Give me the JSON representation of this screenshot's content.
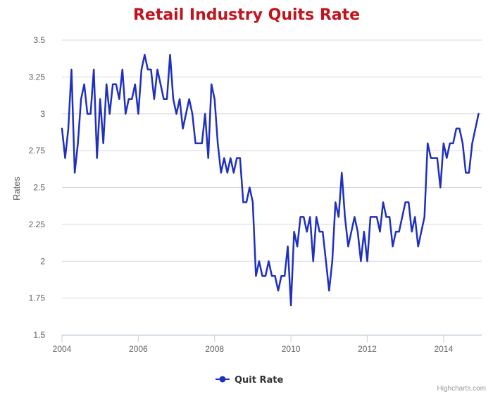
{
  "chart_data": {
    "type": "line",
    "title": "Retail Industry Quits Rate",
    "ylabel": "Rates",
    "xlabel": "",
    "xlim": [
      2004,
      2015
    ],
    "ylim": [
      1.5,
      3.5
    ],
    "x_ticks": [
      "2004",
      "2006",
      "2008",
      "2010",
      "2012",
      "2014"
    ],
    "y_ticks": [
      "1.5",
      "1.75",
      "2",
      "2.25",
      "2.5",
      "2.75",
      "3",
      "3.25",
      "3.5"
    ],
    "grid": "horizontal",
    "legend_position": "bottom-center",
    "credit": "Highcharts.com",
    "colors": {
      "title": "#c0141c",
      "series": "#1f2fbf",
      "grid": "#d8d8d8",
      "axis": "#c0d0e0"
    },
    "series": [
      {
        "name": "Quit Rate",
        "start": "2004-01",
        "frequency": "monthly",
        "values": [
          2.9,
          2.7,
          2.9,
          3.3,
          2.6,
          2.8,
          3.1,
          3.2,
          3.0,
          3.0,
          3.3,
          2.7,
          3.1,
          2.8,
          3.2,
          3.0,
          3.2,
          3.2,
          3.1,
          3.3,
          3.0,
          3.1,
          3.1,
          3.2,
          3.0,
          3.3,
          3.4,
          3.3,
          3.3,
          3.1,
          3.3,
          3.2,
          3.1,
          3.1,
          3.4,
          3.1,
          3.0,
          3.1,
          2.9,
          3.0,
          3.1,
          3.0,
          2.8,
          2.8,
          2.8,
          3.0,
          2.7,
          3.2,
          3.1,
          2.8,
          2.6,
          2.7,
          2.6,
          2.7,
          2.6,
          2.7,
          2.7,
          2.4,
          2.4,
          2.5,
          2.4,
          1.9,
          2.0,
          1.9,
          1.9,
          2.0,
          1.9,
          1.9,
          1.8,
          1.9,
          1.9,
          2.1,
          1.7,
          2.2,
          2.1,
          2.3,
          2.3,
          2.2,
          2.3,
          2.0,
          2.3,
          2.2,
          2.2,
          2.0,
          1.8,
          2.0,
          2.4,
          2.3,
          2.6,
          2.3,
          2.1,
          2.2,
          2.3,
          2.2,
          2.0,
          2.2,
          2.0,
          2.3,
          2.3,
          2.3,
          2.2,
          2.4,
          2.3,
          2.3,
          2.1,
          2.2,
          2.2,
          2.3,
          2.4,
          2.4,
          2.2,
          2.3,
          2.1,
          2.2,
          2.3,
          2.8,
          2.7,
          2.7,
          2.7,
          2.5,
          2.8,
          2.7,
          2.8,
          2.8,
          2.9,
          2.9,
          2.8,
          2.6,
          2.6,
          2.8,
          2.9,
          3.0
        ]
      }
    ]
  }
}
